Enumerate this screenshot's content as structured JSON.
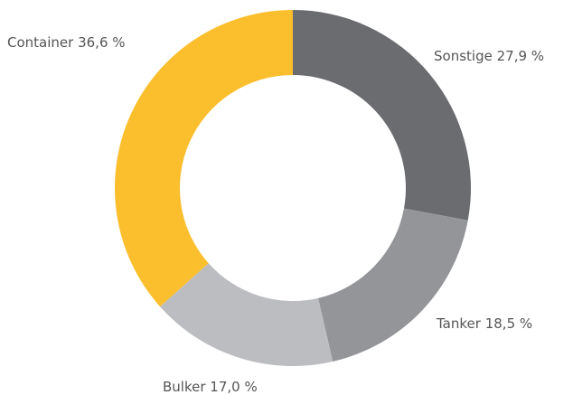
{
  "chart_data": {
    "type": "pie",
    "categories": [
      "Sonstige",
      "Tanker",
      "Bulker",
      "Container"
    ],
    "values": [
      27.9,
      18.5,
      17.0,
      36.6
    ],
    "value_labels": [
      "27,9 %",
      "18,5 %",
      "17,0 %",
      "36,6 %"
    ],
    "colors": [
      "#6b6c70",
      "#939598",
      "#bcbdc0",
      "#fbbf2e"
    ]
  }
}
